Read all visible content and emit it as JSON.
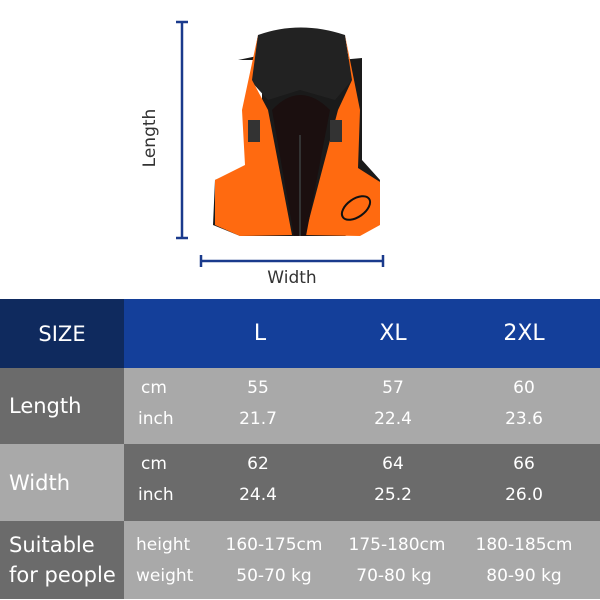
{
  "product_image": {
    "description_icon": "life-vest-image",
    "length_label": "Length",
    "width_label": "Width",
    "arrow_color": "#1a3a8c",
    "vest_color": "#ff6a10"
  },
  "table": {
    "header": {
      "label": "SIZE",
      "sizes": [
        "L",
        "XL",
        "2XL"
      ]
    },
    "rows": [
      {
        "label": "Length",
        "units": [
          "cm",
          "inch"
        ],
        "values": [
          [
            "55",
            "57",
            "60"
          ],
          [
            "21.7",
            "22.4",
            "23.6"
          ]
        ]
      },
      {
        "label": "Width",
        "units": [
          "cm",
          "inch"
        ],
        "values": [
          [
            "62",
            "64",
            "66"
          ],
          [
            "24.4",
            "25.2",
            "26.0"
          ]
        ]
      },
      {
        "label_line1": "Suitable",
        "label_line2": "for people",
        "units": [
          "height",
          "weight"
        ],
        "values": [
          [
            "160-175cm",
            "175-180cm",
            "180-185cm"
          ],
          [
            "50-70 kg",
            "70-80 kg",
            "80-90 kg"
          ]
        ]
      }
    ],
    "colors": {
      "header_left": "#0f2a5e",
      "header_right": "#143f9a",
      "dark_gray": "#6b6b6b",
      "light_gray": "#a9a9a9"
    }
  }
}
